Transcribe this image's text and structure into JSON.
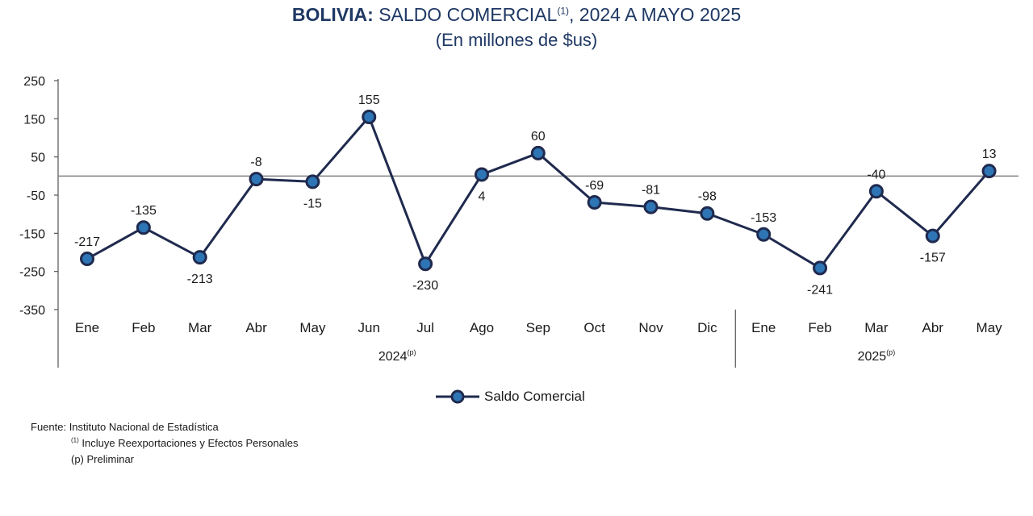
{
  "title": {
    "bold": "BOLIVIA:",
    "main": " SALDO COMERCIAL",
    "sup": "(1)",
    "rest": ", 2024 A MAYO 2025"
  },
  "subtitle": "(En millones de $us)",
  "colors": {
    "line": "#1f2a4e",
    "marker_fill": "#2e75b6",
    "marker_stroke": "#1f2a4e",
    "title": "#1f3864",
    "zero_line": "#808080"
  },
  "chart_data": {
    "type": "line",
    "ylim": [
      -350,
      250
    ],
    "yticks": [
      250,
      150,
      50,
      -50,
      -150,
      -250,
      -350
    ],
    "categories": [
      "Ene",
      "Feb",
      "Mar",
      "Abr",
      "May",
      "Jun",
      "Jul",
      "Ago",
      "Sep",
      "Oct",
      "Nov",
      "Dic",
      "Ene",
      "Feb",
      "Mar",
      "Abr",
      "May"
    ],
    "groups": [
      {
        "label": "2024",
        "sup": "(p)",
        "start": 0,
        "end": 11
      },
      {
        "label": "2025",
        "sup": "(p)",
        "start": 12,
        "end": 16
      }
    ],
    "series": [
      {
        "name": "Saldo Comercial",
        "values": [
          -217,
          -135,
          -213,
          -8,
          -15,
          155,
          -230,
          4,
          60,
          -69,
          -81,
          -98,
          -153,
          -241,
          -40,
          -157,
          13
        ],
        "data_labels": [
          "-217",
          "-135",
          "-213",
          "-8",
          "-15",
          "155",
          "-230",
          "4",
          "60",
          "-69",
          "-81",
          "-98",
          "-153",
          "-241",
          "-40",
          "-157",
          "13"
        ]
      }
    ],
    "legend_position": "bottom",
    "grid": false
  },
  "footnotes": {
    "source": "Fuente: Instituto Nacional de Estadística",
    "note1_sup": "(1)",
    "note1": "Incluye Reexportaciones y Efectos Personales",
    "note2": "(p) Preliminar"
  }
}
